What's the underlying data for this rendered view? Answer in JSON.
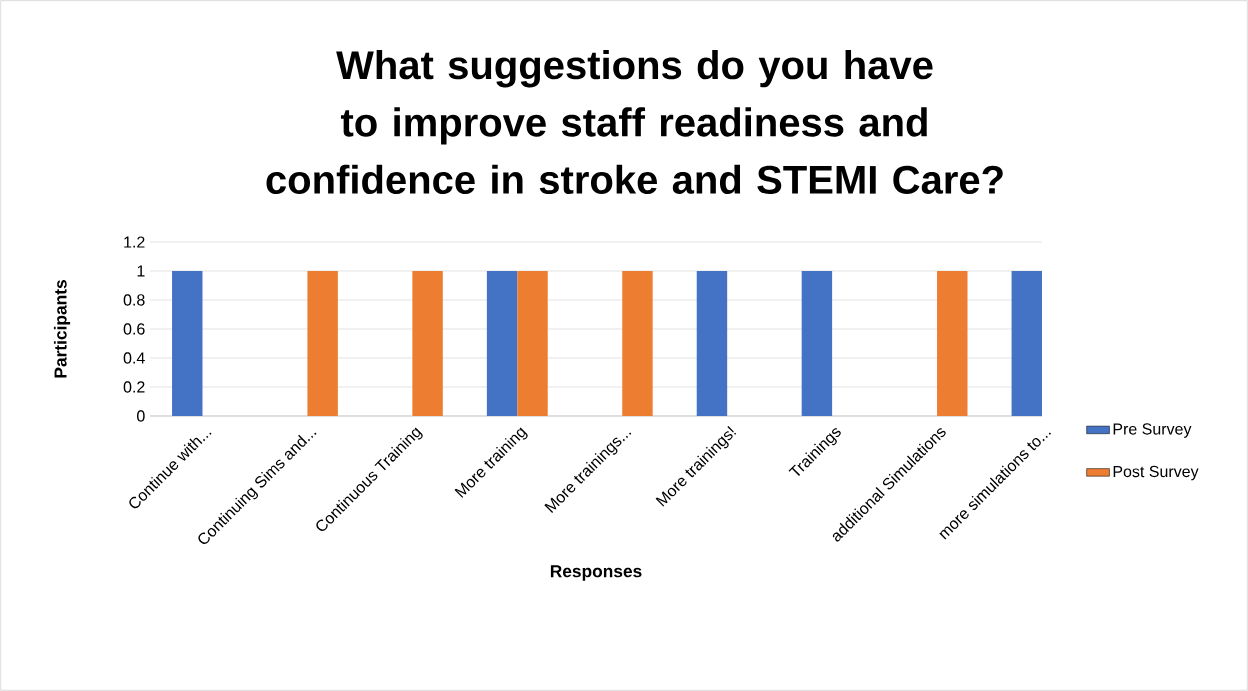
{
  "chart_data": {
    "type": "bar",
    "title": "What suggestions do you have to improve staff readiness and confidence in stroke and STEMI Care?",
    "xlabel": "Responses",
    "ylabel": "Participants",
    "categories": [
      "Continue with...",
      "Continuing Sims and...",
      "Continuous Training",
      "More training",
      "More trainings...",
      "More trainings!",
      "Trainings",
      "additional Simulations",
      "more simulations to..."
    ],
    "series": [
      {
        "name": "Pre Survey",
        "color": "#4472c4",
        "values": [
          1,
          null,
          null,
          1,
          null,
          1,
          1,
          null,
          1
        ]
      },
      {
        "name": "Post Survey",
        "color": "#ed7d31",
        "values": [
          null,
          1,
          1,
          1,
          1,
          null,
          null,
          1,
          null
        ]
      }
    ],
    "ylim": [
      0,
      1.2
    ],
    "yticks": [
      0,
      0.2,
      0.4,
      0.6,
      0.8,
      1,
      1.2
    ],
    "grid": "y",
    "legend": "right"
  }
}
